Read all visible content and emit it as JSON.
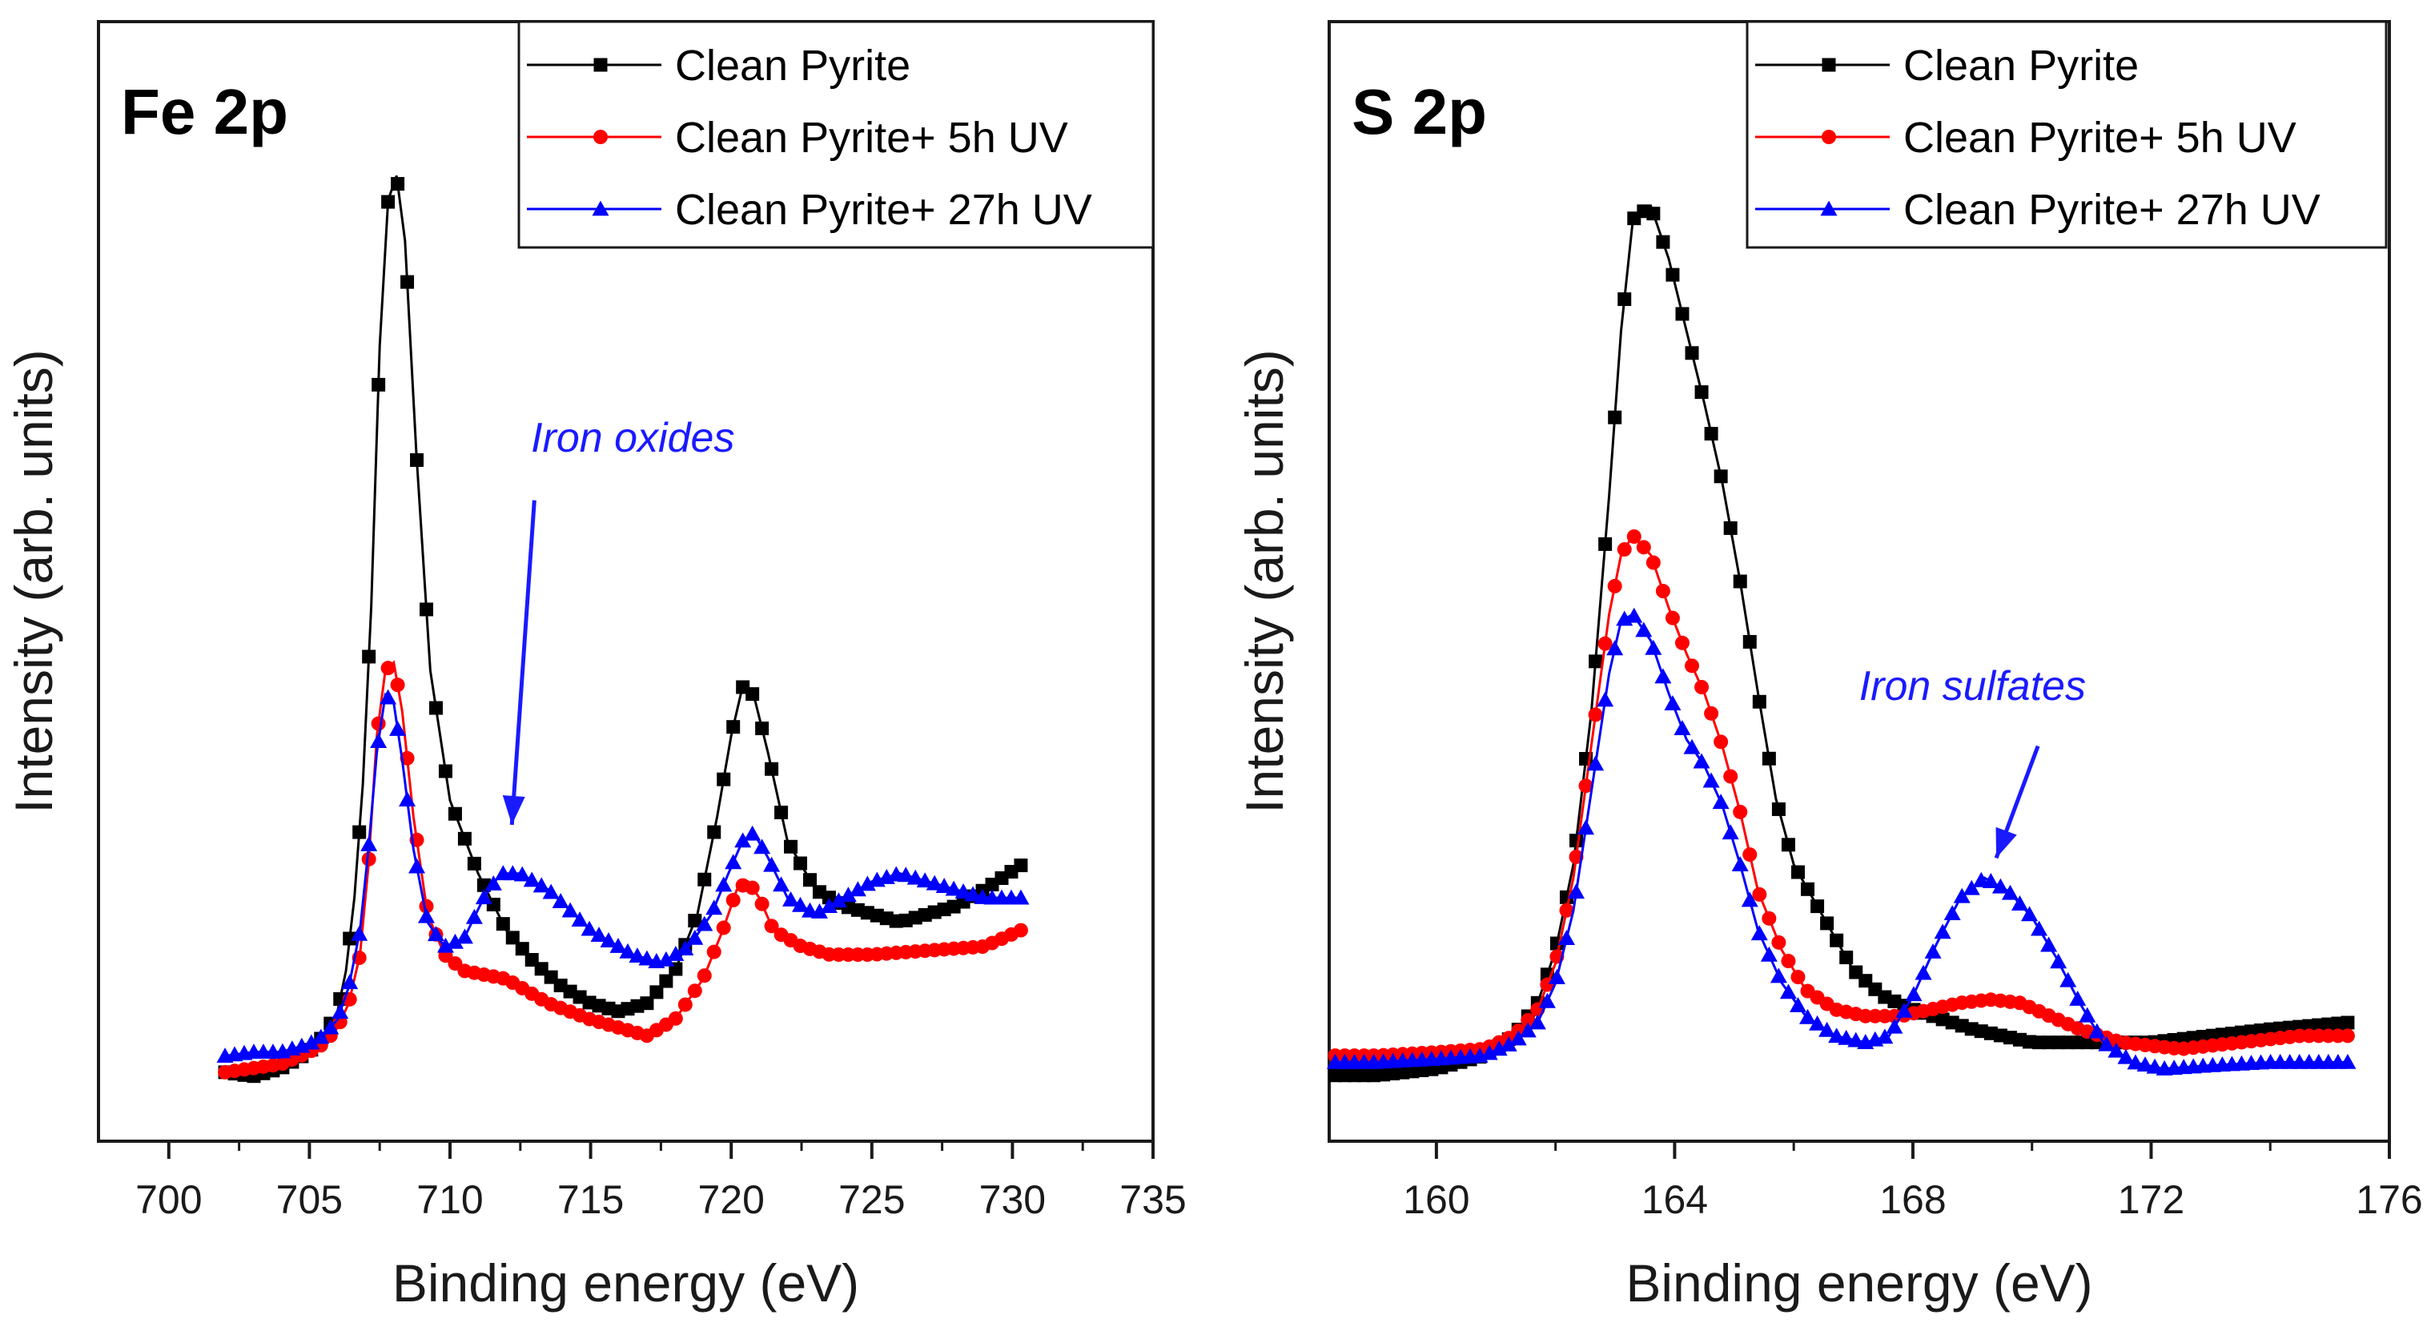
{
  "chart_data": [
    {
      "type": "line",
      "panel_label": "Fe 2p",
      "xlabel": "Binding energy (eV)",
      "ylabel": "Intensity (arb. units)",
      "xlim": [
        697.5,
        735
      ],
      "ylim": [
        -8,
        130
      ],
      "xticks": [
        700,
        705,
        710,
        715,
        720,
        725,
        730,
        735
      ],
      "xtick_labels": [
        "700",
        "705",
        "710",
        "715",
        "720",
        "725",
        "730",
        "735"
      ],
      "legend_position": "top-right",
      "annotation": {
        "text": "Iron oxides",
        "color": "#1a1aff",
        "x": 712.2,
        "y": 31,
        "text_x": 716.5,
        "text_y": 77,
        "arrow_from_x": 713.0,
        "arrow_from_y": 71
      },
      "series": [
        {
          "name": "Clean Pyrite",
          "color": "#000000",
          "marker": "square",
          "x": [
            702,
            703,
            704,
            705,
            705.5,
            706,
            706.3,
            706.6,
            706.9,
            707.2,
            707.5,
            707.8,
            708.1,
            708.4,
            708.8,
            709.3,
            710,
            711,
            712,
            713,
            714,
            715,
            716,
            717,
            718,
            718.8,
            719.5,
            720,
            720.4,
            720.8,
            721.3,
            722,
            723,
            724,
            725,
            726,
            727,
            728,
            729,
            730.3
          ],
          "y": [
            0.5,
            0,
            1,
            3,
            5,
            8,
            13,
            22,
            36,
            58,
            90,
            108,
            111,
            103,
            77,
            50,
            34,
            25,
            18,
            14,
            11,
            9,
            8,
            9,
            13,
            20,
            32,
            42,
            48,
            47,
            40,
            29,
            23,
            21,
            20,
            19,
            20,
            21,
            23,
            26
          ]
        },
        {
          "name": "Clean Pyrite+ 5h UV",
          "color": "#ff0000",
          "marker": "circle",
          "x": [
            702,
            703,
            704,
            705,
            705.5,
            706,
            706.4,
            706.8,
            707.1,
            707.4,
            707.7,
            708,
            708.3,
            708.7,
            709.2,
            709.8,
            710.5,
            712,
            713.5,
            715,
            716,
            717,
            718,
            719,
            719.7,
            720.2,
            720.6,
            721,
            721.5,
            722.5,
            723.5,
            725,
            727,
            729,
            730.3
          ],
          "y": [
            0.5,
            1,
            1.5,
            3,
            4,
            6,
            9,
            15,
            26,
            42,
            50,
            51,
            45,
            32,
            20,
            15,
            13,
            12,
            9,
            7,
            6,
            5,
            7,
            12,
            18,
            23,
            24,
            22,
            18,
            16,
            15,
            15,
            15.5,
            16,
            18
          ]
        },
        {
          "name": "Clean Pyrite+ 27h UV",
          "color": "#0000ff",
          "marker": "triangle",
          "x": [
            702,
            703,
            704,
            705,
            705.5,
            706,
            706.4,
            706.8,
            707.1,
            707.4,
            707.7,
            708,
            708.3,
            708.7,
            709.2,
            709.8,
            710.5,
            711.2,
            711.8,
            712.5,
            713.5,
            715,
            716.5,
            717.5,
            718.5,
            719.3,
            719.9,
            720.4,
            720.8,
            721.3,
            722,
            723,
            724,
            725,
            726,
            727,
            728,
            729,
            730.3
          ],
          "y": [
            2.5,
            3,
            3,
            4,
            5,
            7,
            11,
            18,
            28,
            40,
            47,
            46,
            39,
            28,
            19,
            16,
            17,
            22,
            25,
            25,
            23,
            18,
            15,
            14,
            16,
            20,
            25,
            29,
            30,
            27,
            22,
            20,
            22,
            24,
            25,
            24,
            23,
            22,
            22
          ]
        }
      ]
    },
    {
      "type": "line",
      "panel_label": "S 2p",
      "xlabel": "Binding energy (eV)",
      "ylabel": "Intensity (arb. units)",
      "xlim": [
        158.2,
        176
      ],
      "ylim": [
        -10,
        160
      ],
      "xticks": [
        160,
        164,
        168,
        172,
        176
      ],
      "xtick_labels": [
        "160",
        "164",
        "168",
        "172",
        "176"
      ],
      "legend_position": "top-right",
      "annotation": {
        "text": "Iron sulfates",
        "color": "#1a1aff",
        "x": 169.4,
        "y": 33,
        "text_x": 169.0,
        "text_y": 57,
        "arrow_from_x": 170.1,
        "arrow_from_y": 50
      },
      "series": [
        {
          "name": "Clean Pyrite",
          "color": "#000000",
          "marker": "square",
          "x": [
            158.3,
            159,
            160,
            160.8,
            161.3,
            161.7,
            162,
            162.3,
            162.6,
            162.9,
            163.1,
            163.3,
            163.6,
            163.9,
            164.2,
            164.5,
            164.8,
            165.1,
            165.4,
            165.7,
            166,
            166.5,
            167,
            167.5,
            168,
            169,
            170,
            171,
            172,
            173,
            174,
            175.3
          ],
          "y": [
            0,
            0,
            1,
            3,
            6,
            11,
            19,
            32,
            55,
            88,
            113,
            130,
            132,
            124,
            113,
            102,
            90,
            75,
            58,
            42,
            32,
            24,
            16,
            12,
            10,
            7,
            5,
            5,
            5,
            6,
            7,
            8
          ]
        },
        {
          "name": "Clean Pyrite+ 5h UV",
          "color": "#ff0000",
          "marker": "circle",
          "x": [
            158.3,
            159,
            160,
            160.8,
            161.3,
            161.7,
            162,
            162.3,
            162.6,
            162.9,
            163.1,
            163.3,
            163.6,
            163.9,
            164.2,
            164.5,
            164.8,
            165.1,
            165.4,
            165.8,
            166.2,
            166.7,
            167.2,
            167.8,
            168.3,
            168.8,
            169.3,
            169.8,
            170.3,
            170.8,
            171.5,
            172.5,
            173.5,
            174.5,
            175.3
          ],
          "y": [
            3,
            3,
            3.5,
            4,
            6,
            10,
            17,
            30,
            50,
            70,
            79,
            82,
            79,
            71,
            64,
            58,
            50,
            40,
            28,
            19,
            13,
            10,
            9,
            9,
            10,
            11,
            11.5,
            11,
            9,
            7,
            5,
            4,
            5,
            6,
            6
          ]
        },
        {
          "name": "Clean Pyrite+ 27h UV",
          "color": "#0000ff",
          "marker": "triangle",
          "x": [
            158.3,
            159,
            160,
            160.8,
            161.3,
            161.7,
            162,
            162.3,
            162.6,
            162.9,
            163.1,
            163.3,
            163.6,
            163.9,
            164.2,
            164.5,
            164.8,
            165.1,
            165.4,
            165.8,
            166.2,
            166.7,
            167.2,
            167.6,
            168,
            168.4,
            168.8,
            169.2,
            169.6,
            170,
            170.4,
            170.8,
            171.2,
            171.7,
            172.2,
            173,
            174,
            175.3
          ],
          "y": [
            2,
            2,
            2.5,
            3,
            5,
            8,
            14,
            25,
            43,
            61,
            69,
            70,
            66,
            58,
            51,
            47,
            41,
            32,
            22,
            14,
            9,
            6,
            5,
            6,
            12,
            20,
            27,
            30,
            28,
            24,
            18,
            11,
            5,
            2,
            1,
            1.5,
            2,
            2
          ]
        }
      ]
    }
  ]
}
